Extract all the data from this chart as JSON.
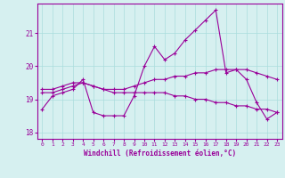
{
  "x": [
    0,
    1,
    2,
    3,
    4,
    5,
    6,
    7,
    8,
    9,
    10,
    11,
    12,
    13,
    14,
    15,
    16,
    17,
    18,
    19,
    20,
    21,
    22,
    23
  ],
  "line1": [
    18.7,
    19.1,
    19.2,
    19.3,
    19.6,
    18.6,
    18.5,
    18.5,
    18.5,
    19.1,
    20.0,
    20.6,
    20.2,
    20.4,
    20.8,
    21.1,
    21.4,
    21.7,
    19.8,
    19.9,
    19.6,
    18.9,
    18.4,
    18.6
  ],
  "line2": [
    19.2,
    19.2,
    19.3,
    19.4,
    19.5,
    19.4,
    19.3,
    19.3,
    19.3,
    19.4,
    19.5,
    19.6,
    19.6,
    19.7,
    19.7,
    19.8,
    19.8,
    19.9,
    19.9,
    19.9,
    19.9,
    19.8,
    19.7,
    19.6
  ],
  "line3": [
    19.3,
    19.3,
    19.4,
    19.5,
    19.5,
    19.4,
    19.3,
    19.2,
    19.2,
    19.2,
    19.2,
    19.2,
    19.2,
    19.1,
    19.1,
    19.0,
    19.0,
    18.9,
    18.9,
    18.8,
    18.8,
    18.7,
    18.7,
    18.6
  ],
  "line_color": "#990099",
  "bg_color": "#d6f0f0",
  "grid_color": "#aadddd",
  "xlabel": "Windchill (Refroidissement éolien,°C)",
  "yticks": [
    18,
    19,
    20,
    21
  ],
  "xticks": [
    0,
    1,
    2,
    3,
    4,
    5,
    6,
    7,
    8,
    9,
    10,
    11,
    12,
    13,
    14,
    15,
    16,
    17,
    18,
    19,
    20,
    21,
    22,
    23
  ],
  "ylim": [
    17.8,
    21.9
  ],
  "xlim": [
    -0.5,
    23.5
  ]
}
